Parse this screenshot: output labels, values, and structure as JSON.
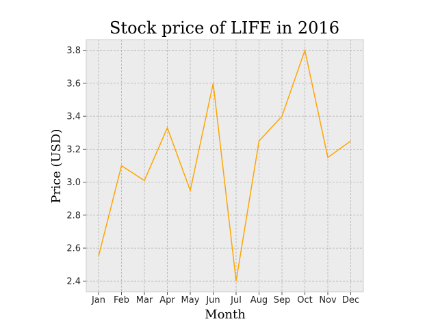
{
  "chart_data": {
    "type": "line",
    "title": "Stock price of LIFE in 2016",
    "xlabel": "Month",
    "ylabel": "Price (USD)",
    "categories": [
      "Jan",
      "Feb",
      "Mar",
      "Apr",
      "May",
      "Jun",
      "Jul",
      "Aug",
      "Sep",
      "Oct",
      "Nov",
      "Dec"
    ],
    "series": [
      {
        "values": [
          2.55,
          3.1,
          3.01,
          3.33,
          2.95,
          3.6,
          2.4,
          3.25,
          3.4,
          3.8,
          3.15,
          3.25
        ],
        "color": "#ffa500"
      }
    ],
    "yticks": [
      2.4,
      2.6,
      2.8,
      3.0,
      3.2,
      3.4,
      3.6,
      3.8
    ],
    "ytick_labels": [
      "2.4",
      "2.6",
      "2.8",
      "3.0",
      "3.2",
      "3.4",
      "3.6",
      "3.8"
    ],
    "ylim": [
      2.335,
      3.865
    ],
    "grid": true,
    "grid_style": "dashed",
    "plot_background": "#ececec",
    "legend": false
  }
}
